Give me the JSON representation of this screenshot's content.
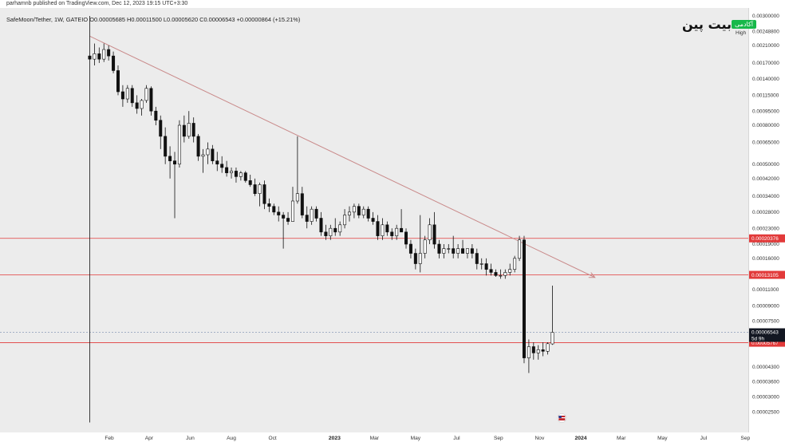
{
  "header": {
    "published_by": "parhamnb published on TradingView.com, Dec 12, 2023 19:15 UTC+3:30"
  },
  "symbol_line": "SafeMoon/Tether, 1W, GATEIO  O0.00005685  H0.00011500  L0.00005620  C0.00006543  +0.00000864 (+15.21%)",
  "logo": {
    "text": "بیت پین",
    "badge": "آکادمی",
    "badge_color": "#17b84a"
  },
  "chart_data": {
    "type": "candlestick",
    "pair": "SafeMoon/Tether",
    "timeframe": "1W",
    "exchange": "GATEIO",
    "ohlc_last": {
      "open": "0.00005685",
      "high": "0.00011500",
      "low": "0.00005620",
      "close": "0.00006543",
      "change": "+0.00000864",
      "change_pct": "+15.21%"
    },
    "y_scale": "log",
    "y_ticks": [
      "0.00300000",
      "0.00248800",
      "0.00210000",
      "0.00170000",
      "0.00140000",
      "0.00115000",
      "0.00095000",
      "0.00080000",
      "0.00065000",
      "0.00050000",
      "0.00042000",
      "0.00034000",
      "0.00028000",
      "0.00023000",
      "0.00019000",
      "0.00016000",
      "0.00013000",
      "0.00011000",
      "0.00009000",
      "0.00007500",
      "0.00006000",
      "0.00004300",
      "0.00003600",
      "0.00003000",
      "0.00002500"
    ],
    "high_label": "High",
    "x_ticks": [
      {
        "label": "Feb",
        "bold": false
      },
      {
        "label": "Apr",
        "bold": false
      },
      {
        "label": "Jun",
        "bold": false
      },
      {
        "label": "Aug",
        "bold": false
      },
      {
        "label": "Oct",
        "bold": false
      },
      {
        "label": "2023",
        "bold": true
      },
      {
        "label": "Mar",
        "bold": false
      },
      {
        "label": "May",
        "bold": false
      },
      {
        "label": "Jul",
        "bold": false
      },
      {
        "label": "Sep",
        "bold": false
      },
      {
        "label": "Nov",
        "bold": false
      },
      {
        "label": "2024",
        "bold": true
      },
      {
        "label": "Mar",
        "bold": false
      },
      {
        "label": "May",
        "bold": false
      },
      {
        "label": "Jul",
        "bold": false
      },
      {
        "label": "Sep",
        "bold": false
      }
    ],
    "horizontal_levels": [
      {
        "value": "0.00020376",
        "color": "#e23a3a",
        "style": "solid"
      },
      {
        "value": "0.00013105",
        "color": "#e23a3a",
        "style": "solid"
      },
      {
        "value": "0.00005767",
        "color": "#e23a3a",
        "style": "solid"
      }
    ],
    "current_price": {
      "value": "0.00006543",
      "countdown": "5d 9h",
      "color": "#131722",
      "line_color": "#8a9bb8"
    },
    "trendline": {
      "color": "#c98a8a",
      "from": {
        "date": "2022-01-03",
        "price": 0.00235
      },
      "to": {
        "date": "2024-01-22",
        "price": 0.000127
      }
    },
    "candles": [
      {
        "date": "2022-01-03",
        "o": 0.00185,
        "h": 0.003,
        "l": 2e-05,
        "c": 0.00178
      },
      {
        "date": "2022-01-10",
        "o": 0.00178,
        "h": 0.00215,
        "l": 0.00165,
        "c": 0.0019
      },
      {
        "date": "2022-01-17",
        "o": 0.0019,
        "h": 0.00205,
        "l": 0.0017,
        "c": 0.00178
      },
      {
        "date": "2022-01-24",
        "o": 0.00178,
        "h": 0.00215,
        "l": 0.00172,
        "c": 0.002
      },
      {
        "date": "2022-01-31",
        "o": 0.002,
        "h": 0.0021,
        "l": 0.00175,
        "c": 0.00185
      },
      {
        "date": "2022-02-07",
        "o": 0.00185,
        "h": 0.00195,
        "l": 0.0015,
        "c": 0.00155
      },
      {
        "date": "2022-02-14",
        "o": 0.00155,
        "h": 0.00165,
        "l": 0.00115,
        "c": 0.0012
      },
      {
        "date": "2022-02-21",
        "o": 0.0012,
        "h": 0.0013,
        "l": 0.001,
        "c": 0.0011
      },
      {
        "date": "2022-02-28",
        "o": 0.0011,
        "h": 0.0013,
        "l": 0.00105,
        "c": 0.00125
      },
      {
        "date": "2022-03-07",
        "o": 0.00125,
        "h": 0.0013,
        "l": 0.001,
        "c": 0.00105
      },
      {
        "date": "2022-03-14",
        "o": 0.00105,
        "h": 0.00115,
        "l": 0.00092,
        "c": 0.00098
      },
      {
        "date": "2022-03-21",
        "o": 0.00098,
        "h": 0.0011,
        "l": 0.0009,
        "c": 0.00108
      },
      {
        "date": "2022-03-28",
        "o": 0.00108,
        "h": 0.0013,
        "l": 0.00105,
        "c": 0.00125
      },
      {
        "date": "2022-04-04",
        "o": 0.00125,
        "h": 0.00128,
        "l": 0.0009,
        "c": 0.00095
      },
      {
        "date": "2022-04-11",
        "o": 0.00095,
        "h": 0.001,
        "l": 0.0008,
        "c": 0.00085
      },
      {
        "date": "2022-04-18",
        "o": 0.00085,
        "h": 0.0009,
        "l": 0.0006,
        "c": 0.0007
      },
      {
        "date": "2022-04-25",
        "o": 0.0007,
        "h": 0.00078,
        "l": 0.0005,
        "c": 0.00055
      },
      {
        "date": "2022-05-02",
        "o": 0.00055,
        "h": 0.00062,
        "l": 0.00042,
        "c": 0.00052
      },
      {
        "date": "2022-05-09",
        "o": 0.00052,
        "h": 0.00058,
        "l": 0.00026,
        "c": 0.0005
      },
      {
        "date": "2022-05-16",
        "o": 0.0005,
        "h": 0.00085,
        "l": 0.00048,
        "c": 0.0008
      },
      {
        "date": "2022-05-23",
        "o": 0.0008,
        "h": 0.0009,
        "l": 0.00065,
        "c": 0.0007
      },
      {
        "date": "2022-05-30",
        "o": 0.0007,
        "h": 0.00095,
        "l": 0.00068,
        "c": 0.00082
      },
      {
        "date": "2022-06-06",
        "o": 0.00082,
        "h": 0.00088,
        "l": 0.00065,
        "c": 0.0007
      },
      {
        "date": "2022-06-13",
        "o": 0.0007,
        "h": 0.00072,
        "l": 0.00052,
        "c": 0.00055
      },
      {
        "date": "2022-06-20",
        "o": 0.00055,
        "h": 0.0006,
        "l": 0.00045,
        "c": 0.00056
      },
      {
        "date": "2022-06-27",
        "o": 0.00056,
        "h": 0.00065,
        "l": 0.0005,
        "c": 0.0006
      },
      {
        "date": "2022-07-04",
        "o": 0.0006,
        "h": 0.00063,
        "l": 0.0005,
        "c": 0.00052
      },
      {
        "date": "2022-07-11",
        "o": 0.00052,
        "h": 0.00058,
        "l": 0.00046,
        "c": 0.0005
      },
      {
        "date": "2022-07-18",
        "o": 0.0005,
        "h": 0.00055,
        "l": 0.00045,
        "c": 0.00048
      },
      {
        "date": "2022-07-25",
        "o": 0.00048,
        "h": 0.00052,
        "l": 0.00043,
        "c": 0.00045
      },
      {
        "date": "2022-08-01",
        "o": 0.00045,
        "h": 0.00048,
        "l": 0.00042,
        "c": 0.00046
      },
      {
        "date": "2022-08-08",
        "o": 0.00046,
        "h": 0.00048,
        "l": 0.0004,
        "c": 0.00043
      },
      {
        "date": "2022-08-15",
        "o": 0.00043,
        "h": 0.00046,
        "l": 0.00041,
        "c": 0.00045
      },
      {
        "date": "2022-08-22",
        "o": 0.00045,
        "h": 0.00046,
        "l": 0.0004,
        "c": 0.00041
      },
      {
        "date": "2022-08-29",
        "o": 0.00041,
        "h": 0.00044,
        "l": 0.00038,
        "c": 0.00039
      },
      {
        "date": "2022-09-05",
        "o": 0.00039,
        "h": 0.00042,
        "l": 0.00034,
        "c": 0.00035
      },
      {
        "date": "2022-09-12",
        "o": 0.00035,
        "h": 0.0004,
        "l": 0.0003,
        "c": 0.00039
      },
      {
        "date": "2022-09-19",
        "o": 0.00039,
        "h": 0.00041,
        "l": 0.00029,
        "c": 0.00031
      },
      {
        "date": "2022-09-26",
        "o": 0.00031,
        "h": 0.00033,
        "l": 0.00028,
        "c": 0.0003
      },
      {
        "date": "2022-10-03",
        "o": 0.0003,
        "h": 0.00031,
        "l": 0.00027,
        "c": 0.00028
      },
      {
        "date": "2022-10-10",
        "o": 0.00028,
        "h": 0.0003,
        "l": 0.00025,
        "c": 0.00027
      },
      {
        "date": "2022-10-17",
        "o": 0.00027,
        "h": 0.00028,
        "l": 0.00018,
        "c": 0.00026
      },
      {
        "date": "2022-10-24",
        "o": 0.00026,
        "h": 0.00028,
        "l": 0.00024,
        "c": 0.00025
      },
      {
        "date": "2022-10-31",
        "o": 0.00025,
        "h": 0.00038,
        "l": 0.00025,
        "c": 0.00032
      },
      {
        "date": "2022-11-07",
        "o": 0.00032,
        "h": 0.0007,
        "l": 0.00031,
        "c": 0.00035
      },
      {
        "date": "2022-11-14",
        "o": 0.00035,
        "h": 0.00038,
        "l": 0.00026,
        "c": 0.00027
      },
      {
        "date": "2022-11-21",
        "o": 0.00027,
        "h": 0.0003,
        "l": 0.00023,
        "c": 0.00025
      },
      {
        "date": "2022-11-28",
        "o": 0.00025,
        "h": 0.0003,
        "l": 0.00024,
        "c": 0.00029
      },
      {
        "date": "2022-12-05",
        "o": 0.00029,
        "h": 0.0003,
        "l": 0.00025,
        "c": 0.00026
      },
      {
        "date": "2022-12-12",
        "o": 0.00026,
        "h": 0.00028,
        "l": 0.00021,
        "c": 0.00022
      },
      {
        "date": "2022-12-19",
        "o": 0.00022,
        "h": 0.00024,
        "l": 0.0002,
        "c": 0.00021
      },
      {
        "date": "2022-12-26",
        "o": 0.00021,
        "h": 0.00024,
        "l": 0.0002,
        "c": 0.00023
      },
      {
        "date": "2023-01-02",
        "o": 0.00023,
        "h": 0.00026,
        "l": 0.00021,
        "c": 0.00022
      },
      {
        "date": "2023-01-09",
        "o": 0.00022,
        "h": 0.00025,
        "l": 0.00021,
        "c": 0.00024
      },
      {
        "date": "2023-01-16",
        "o": 0.00024,
        "h": 0.00029,
        "l": 0.00023,
        "c": 0.00027
      },
      {
        "date": "2023-01-23",
        "o": 0.00027,
        "h": 0.0003,
        "l": 0.00025,
        "c": 0.00028
      },
      {
        "date": "2023-01-30",
        "o": 0.00028,
        "h": 0.00031,
        "l": 0.00026,
        "c": 0.0003
      },
      {
        "date": "2023-02-06",
        "o": 0.0003,
        "h": 0.00031,
        "l": 0.00026,
        "c": 0.00027
      },
      {
        "date": "2023-02-13",
        "o": 0.00027,
        "h": 0.0003,
        "l": 0.00026,
        "c": 0.00029
      },
      {
        "date": "2023-02-20",
        "o": 0.00029,
        "h": 0.0003,
        "l": 0.00025,
        "c": 0.00026
      },
      {
        "date": "2023-02-27",
        "o": 0.00026,
        "h": 0.00028,
        "l": 0.00024,
        "c": 0.00025
      },
      {
        "date": "2023-03-06",
        "o": 0.00025,
        "h": 0.00027,
        "l": 0.0002,
        "c": 0.00021
      },
      {
        "date": "2023-03-13",
        "o": 0.00021,
        "h": 0.00026,
        "l": 0.0002,
        "c": 0.00024
      },
      {
        "date": "2023-03-20",
        "o": 0.00024,
        "h": 0.00025,
        "l": 0.00021,
        "c": 0.00022
      },
      {
        "date": "2023-03-27",
        "o": 0.00022,
        "h": 0.00023,
        "l": 0.0002,
        "c": 0.00021
      },
      {
        "date": "2023-04-03",
        "o": 0.00021,
        "h": 0.00024,
        "l": 0.0002,
        "c": 0.00023
      },
      {
        "date": "2023-04-10",
        "o": 0.00023,
        "h": 0.00029,
        "l": 0.00022,
        "c": 0.00022
      },
      {
        "date": "2023-04-17",
        "o": 0.00022,
        "h": 0.00023,
        "l": 0.00018,
        "c": 0.00019
      },
      {
        "date": "2023-04-24",
        "o": 0.00019,
        "h": 0.0002,
        "l": 0.00016,
        "c": 0.00017
      },
      {
        "date": "2023-05-01",
        "o": 0.00017,
        "h": 0.00018,
        "l": 0.00014,
        "c": 0.00015
      },
      {
        "date": "2023-05-08",
        "o": 0.00015,
        "h": 0.00027,
        "l": 0.000135,
        "c": 0.00017
      },
      {
        "date": "2023-05-15",
        "o": 0.00017,
        "h": 0.00021,
        "l": 0.00016,
        "c": 0.0002
      },
      {
        "date": "2023-05-22",
        "o": 0.0002,
        "h": 0.00026,
        "l": 0.00019,
        "c": 0.00024
      },
      {
        "date": "2023-05-29",
        "o": 0.00024,
        "h": 0.00028,
        "l": 0.00018,
        "c": 0.00019
      },
      {
        "date": "2023-06-05",
        "o": 0.00019,
        "h": 0.0002,
        "l": 0.00016,
        "c": 0.00017
      },
      {
        "date": "2023-06-12",
        "o": 0.00017,
        "h": 0.00019,
        "l": 0.00016,
        "c": 0.00018
      },
      {
        "date": "2023-06-19",
        "o": 0.00018,
        "h": 0.00019,
        "l": 0.00017,
        "c": 0.00018
      },
      {
        "date": "2023-06-26",
        "o": 0.00018,
        "h": 0.00021,
        "l": 0.00016,
        "c": 0.00017
      },
      {
        "date": "2023-07-03",
        "o": 0.00017,
        "h": 0.00019,
        "l": 0.00016,
        "c": 0.00018
      },
      {
        "date": "2023-07-10",
        "o": 0.00018,
        "h": 0.0002,
        "l": 0.00017,
        "c": 0.00017
      },
      {
        "date": "2023-07-17",
        "o": 0.00017,
        "h": 0.00018,
        "l": 0.00016,
        "c": 0.00018
      },
      {
        "date": "2023-07-24",
        "o": 0.00018,
        "h": 0.00019,
        "l": 0.00016,
        "c": 0.00017
      },
      {
        "date": "2023-07-31",
        "o": 0.00017,
        "h": 0.00018,
        "l": 0.00014,
        "c": 0.00015
      },
      {
        "date": "2023-08-07",
        "o": 0.00015,
        "h": 0.00016,
        "l": 0.00014,
        "c": 0.00015
      },
      {
        "date": "2023-08-14",
        "o": 0.00015,
        "h": 0.00016,
        "l": 0.00013,
        "c": 0.00014
      },
      {
        "date": "2023-08-21",
        "o": 0.00014,
        "h": 0.00015,
        "l": 0.00013,
        "c": 0.000135
      },
      {
        "date": "2023-08-28",
        "o": 0.000135,
        "h": 0.00014,
        "l": 0.000128,
        "c": 0.00013
      },
      {
        "date": "2023-09-04",
        "o": 0.00013,
        "h": 0.00014,
        "l": 0.000125,
        "c": 0.00013
      },
      {
        "date": "2023-09-11",
        "o": 0.00013,
        "h": 0.00014,
        "l": 0.000125,
        "c": 0.000135
      },
      {
        "date": "2023-09-18",
        "o": 0.000135,
        "h": 0.00015,
        "l": 0.00013,
        "c": 0.00014
      },
      {
        "date": "2023-09-25",
        "o": 0.00014,
        "h": 0.000165,
        "l": 0.000135,
        "c": 0.00016
      },
      {
        "date": "2023-10-02",
        "o": 0.00016,
        "h": 0.00021,
        "l": 0.000155,
        "c": 0.0002
      },
      {
        "date": "2023-10-09",
        "o": 0.0002,
        "h": 0.00021,
        "l": 4.5e-05,
        "c": 4.8e-05
      },
      {
        "date": "2023-10-16",
        "o": 4.8e-05,
        "h": 6e-05,
        "l": 4e-05,
        "c": 5.5e-05
      },
      {
        "date": "2023-10-23",
        "o": 5.5e-05,
        "h": 5.8e-05,
        "l": 4.7e-05,
        "c": 5.1e-05
      },
      {
        "date": "2023-10-30",
        "o": 5.1e-05,
        "h": 5.6e-05,
        "l": 4.7e-05,
        "c": 5.3e-05
      },
      {
        "date": "2023-11-06",
        "o": 5.3e-05,
        "h": 5.8e-05,
        "l": 4.9e-05,
        "c": 5.2e-05
      },
      {
        "date": "2023-11-13",
        "o": 5.2e-05,
        "h": 5.8e-05,
        "l": 5e-05,
        "c": 5.7e-05
      },
      {
        "date": "2023-11-20",
        "o": 5.685e-05,
        "h": 0.000115,
        "l": 5.62e-05,
        "c": 6.543e-05
      }
    ]
  }
}
